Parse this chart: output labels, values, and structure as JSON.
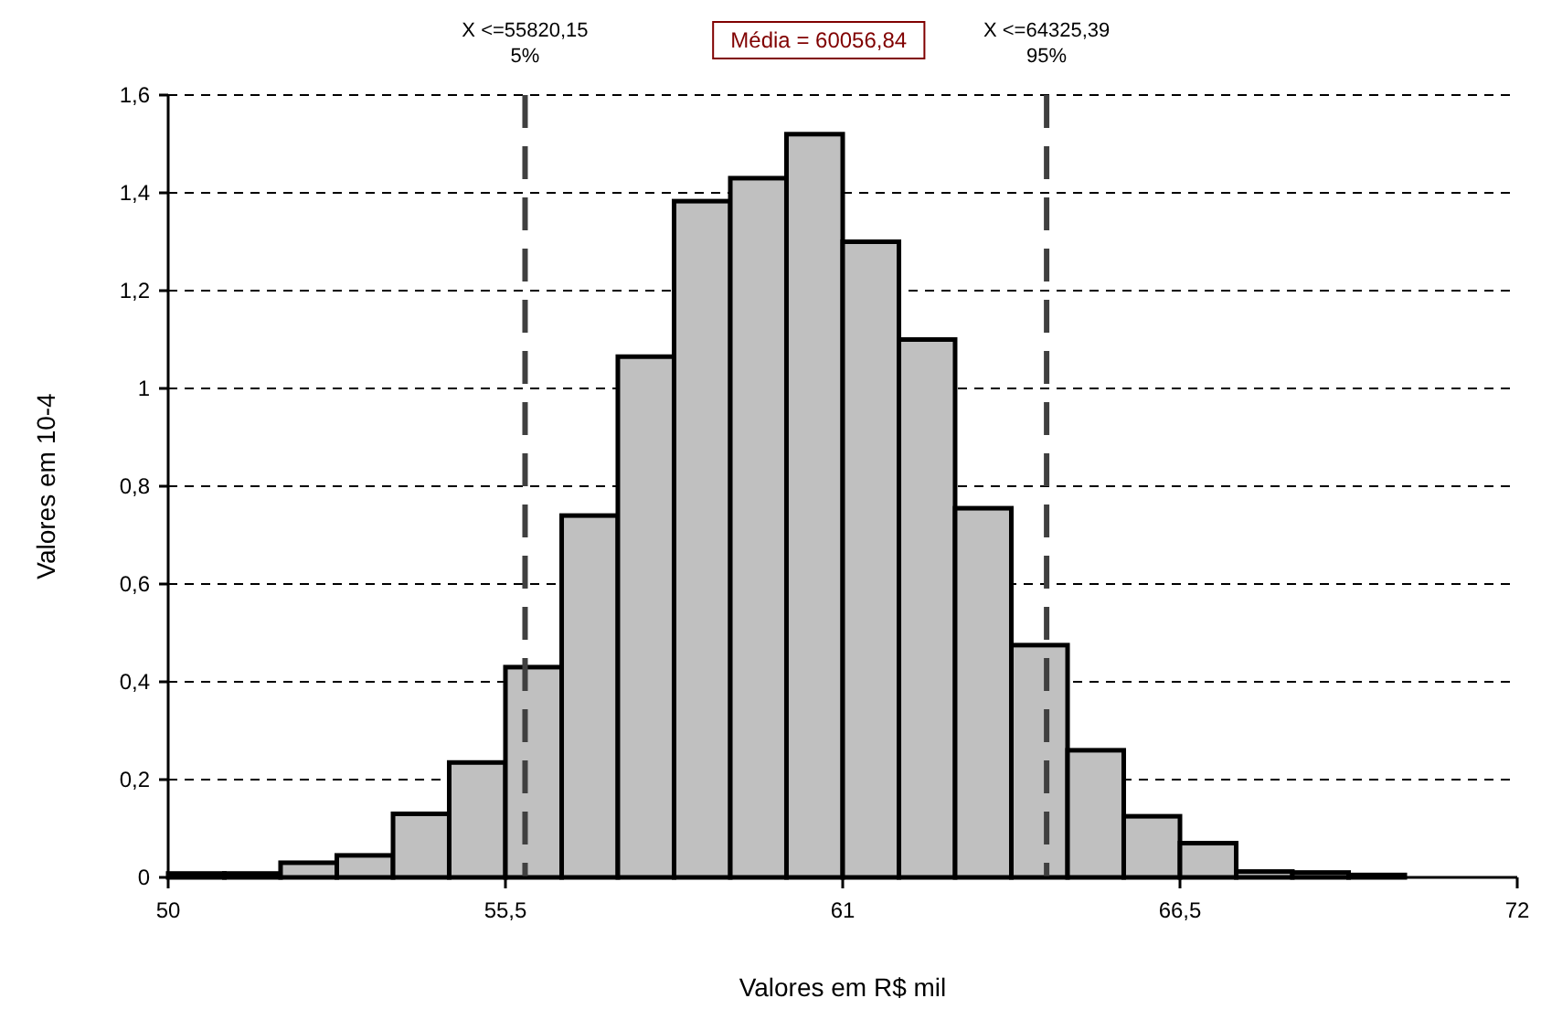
{
  "chart_data": {
    "type": "histogram",
    "xlabel": "Valores em R$ mil",
    "ylabel": "Valores em 10-4",
    "bins": [
      50,
      50.917,
      51.833,
      52.75,
      53.667,
      54.583,
      55.5,
      56.417,
      57.333,
      58.25,
      59.167,
      60.083,
      61,
      61.917,
      62.833,
      63.75,
      64.667,
      65.583,
      66.5,
      67.417,
      68.333,
      69.25,
      70.167,
      71.083,
      72
    ],
    "values": [
      0.008,
      0.008,
      0.03,
      0.045,
      0.13,
      0.235,
      0.43,
      0.74,
      1.065,
      1.383,
      1.43,
      1.52,
      1.3,
      1.1,
      0.755,
      0.475,
      0.26,
      0.125,
      0.07,
      0.012,
      0.01,
      0.005,
      0,
      0
    ],
    "color": "#c0c0c0",
    "xlim": [
      50,
      72
    ],
    "xticks": [
      50,
      {
        "value": 55.5,
        "label": "55,5"
      },
      61,
      {
        "value": 66.5,
        "label": "66,5"
      },
      72
    ],
    "ylim": [
      0,
      1.6
    ],
    "yticks": [
      0,
      {
        "value": 0.2,
        "label": "0,2"
      },
      {
        "value": 0.4,
        "label": "0,4"
      },
      {
        "value": 0.6,
        "label": "0,6"
      },
      {
        "value": 0.8,
        "label": "0,8"
      },
      1,
      {
        "value": 1.2,
        "label": "1,2"
      },
      {
        "value": 1.4,
        "label": "1,4"
      },
      {
        "value": 1.6,
        "label": "1,6"
      }
    ],
    "grid": "y",
    "ref_lines": [
      {
        "axis": "x",
        "value": 55.82015,
        "label": "X <=55820,15\n5%",
        "color": "#404040",
        "line_style": "dashed"
      },
      {
        "axis": "x",
        "value": 64.32539,
        "label": "X <=64325,39\n95%",
        "color": "#404040",
        "line_style": "dashed"
      }
    ],
    "annotations": [
      "Média = 60056,84"
    ]
  }
}
